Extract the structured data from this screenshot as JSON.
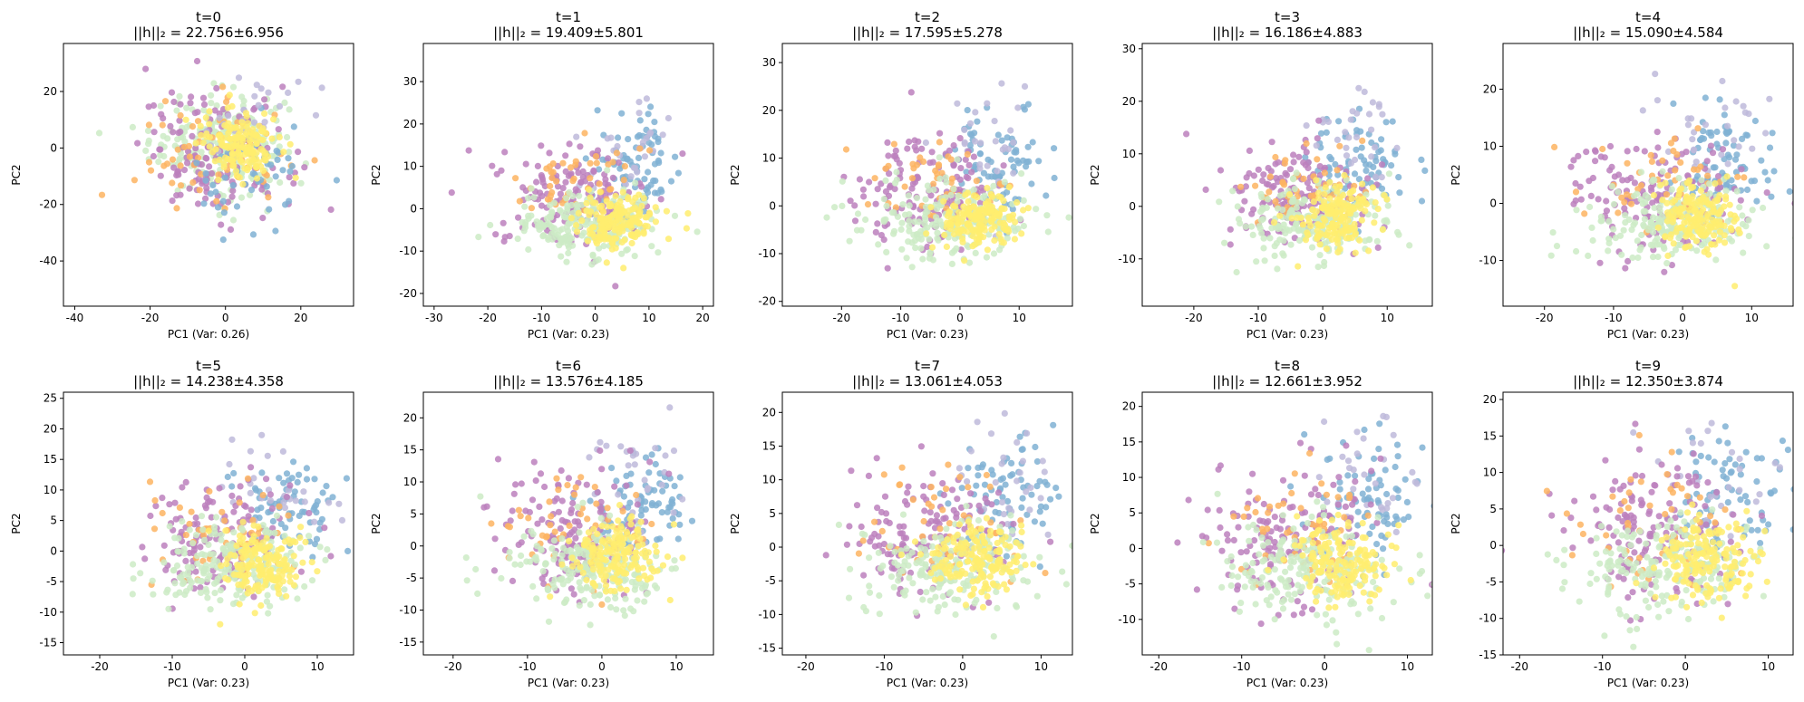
{
  "figure": {
    "palette": [
      "#8dd3c7",
      "#ffffb3",
      "#bebada",
      "#fb8072",
      "#80b1d3",
      "#fdb462",
      "#b3de69",
      "#fccde5",
      "#d9d9d9",
      "#bc80bd",
      "#ccebc5",
      "#ffed6f"
    ]
  },
  "chart_data": [
    {
      "type": "scatter",
      "title_line1": "t=0",
      "title_line2": "||h||₂ = 22.756±6.956",
      "xlabel": "PC1 (Var: 0.26)",
      "ylabel": "PC2",
      "xlim": [
        -43,
        34
      ],
      "ylim": [
        -56,
        37
      ],
      "xticks": [
        -40,
        -20,
        0,
        20
      ],
      "yticks": [
        -40,
        -20,
        0,
        20
      ],
      "clusters": [
        {
          "color": "#ccebc5",
          "cx": -2,
          "cy": 2,
          "sx": 9,
          "sy": 9,
          "n": 200
        },
        {
          "color": "#bc80bd",
          "cx": -2,
          "cy": -2,
          "sx": 10,
          "sy": 11,
          "n": 140
        },
        {
          "color": "#fdb462",
          "cx": -4,
          "cy": -4,
          "sx": 10,
          "sy": 10,
          "n": 60
        },
        {
          "color": "#80b1d3",
          "cx": 8,
          "cy": -10,
          "sx": 8,
          "sy": 10,
          "n": 50
        },
        {
          "color": "#bebada",
          "cx": 4,
          "cy": 10,
          "sx": 8,
          "sy": 10,
          "n": 30
        },
        {
          "color": "#ffed6f",
          "cx": 4,
          "cy": 2,
          "sx": 5,
          "sy": 6,
          "n": 150
        }
      ]
    },
    {
      "type": "scatter",
      "title_line1": "t=1",
      "title_line2": "||h||₂ = 19.409±5.801",
      "xlabel": "PC1 (Var: 0.23)",
      "ylabel": "PC2",
      "xlim": [
        -32,
        22
      ],
      "ylim": [
        -23,
        39
      ],
      "xticks": [
        -30,
        -20,
        -10,
        0,
        10,
        20
      ],
      "yticks": [
        -20,
        -10,
        0,
        10,
        20,
        30
      ],
      "clusters": [
        {
          "color": "#80b1d3",
          "cx": 8,
          "cy": 10,
          "sx": 4,
          "sy": 6,
          "n": 80
        },
        {
          "color": "#bebada",
          "cx": 6,
          "cy": 15,
          "sx": 4,
          "sy": 7,
          "n": 30
        },
        {
          "color": "#bc80bd",
          "cx": -5,
          "cy": 3,
          "sx": 7,
          "sy": 6,
          "n": 150
        },
        {
          "color": "#fdb462",
          "cx": -3,
          "cy": 6,
          "sx": 6,
          "sy": 5,
          "n": 50
        },
        {
          "color": "#ccebc5",
          "cx": -2,
          "cy": -4,
          "sx": 7,
          "sy": 4,
          "n": 200
        },
        {
          "color": "#ffed6f",
          "cx": 4,
          "cy": -3,
          "sx": 3.5,
          "sy": 3,
          "n": 160
        }
      ]
    },
    {
      "type": "scatter",
      "title_line1": "t=2",
      "title_line2": "||h||₂ = 17.595±5.278",
      "xlabel": "PC1 (Var: 0.23)",
      "ylabel": "PC2",
      "xlim": [
        -30,
        19
      ],
      "ylim": [
        -21,
        34
      ],
      "xticks": [
        -20,
        -10,
        0,
        10
      ],
      "yticks": [
        -20,
        -10,
        0,
        10,
        20,
        30
      ],
      "clusters": [
        {
          "color": "#80b1d3",
          "cx": 7,
          "cy": 9,
          "sx": 4,
          "sy": 6,
          "n": 80
        },
        {
          "color": "#bebada",
          "cx": 5,
          "cy": 13,
          "sx": 4,
          "sy": 6,
          "n": 30
        },
        {
          "color": "#bc80bd",
          "cx": -5,
          "cy": 3,
          "sx": 6,
          "sy": 6,
          "n": 150
        },
        {
          "color": "#fdb462",
          "cx": -3,
          "cy": 5,
          "sx": 6,
          "sy": 5,
          "n": 50
        },
        {
          "color": "#ccebc5",
          "cx": -2,
          "cy": -3,
          "sx": 7,
          "sy": 4,
          "n": 200
        },
        {
          "color": "#ffed6f",
          "cx": 3,
          "cy": -3,
          "sx": 3.5,
          "sy": 3,
          "n": 160
        }
      ]
    },
    {
      "type": "scatter",
      "title_line1": "t=3",
      "title_line2": "||h||₂ = 16.186±4.883",
      "xlabel": "PC1 (Var: 0.23)",
      "ylabel": "PC2",
      "xlim": [
        -28,
        17
      ],
      "ylim": [
        -19,
        31
      ],
      "xticks": [
        -20,
        -10,
        0,
        10
      ],
      "yticks": [
        -10,
        0,
        10,
        20,
        30
      ],
      "clusters": [
        {
          "color": "#80b1d3",
          "cx": 6,
          "cy": 8,
          "sx": 4,
          "sy": 5,
          "n": 80
        },
        {
          "color": "#bebada",
          "cx": 5,
          "cy": 12,
          "sx": 4,
          "sy": 6,
          "n": 30
        },
        {
          "color": "#bc80bd",
          "cx": -4,
          "cy": 3,
          "sx": 6,
          "sy": 5,
          "n": 150
        },
        {
          "color": "#fdb462",
          "cx": -3,
          "cy": 4,
          "sx": 5,
          "sy": 4,
          "n": 50
        },
        {
          "color": "#ccebc5",
          "cx": -2,
          "cy": -3,
          "sx": 6,
          "sy": 4,
          "n": 200
        },
        {
          "color": "#ffed6f",
          "cx": 2,
          "cy": -2,
          "sx": 3,
          "sy": 3,
          "n": 160
        }
      ]
    },
    {
      "type": "scatter",
      "title_line1": "t=4",
      "title_line2": "||h||₂ = 15.090±4.584",
      "xlabel": "PC1 (Var: 0.23)",
      "ylabel": "PC2",
      "xlim": [
        -26,
        16
      ],
      "ylim": [
        -18,
        28
      ],
      "xticks": [
        -20,
        -10,
        0,
        10
      ],
      "yticks": [
        -10,
        0,
        10,
        20
      ],
      "clusters": [
        {
          "color": "#80b1d3",
          "cx": 6,
          "cy": 8,
          "sx": 3.5,
          "sy": 5,
          "n": 80
        },
        {
          "color": "#bebada",
          "cx": 5,
          "cy": 11,
          "sx": 4,
          "sy": 5,
          "n": 30
        },
        {
          "color": "#bc80bd",
          "cx": -4,
          "cy": 2,
          "sx": 6,
          "sy": 5,
          "n": 150
        },
        {
          "color": "#fdb462",
          "cx": -3,
          "cy": 4,
          "sx": 5,
          "sy": 4,
          "n": 50
        },
        {
          "color": "#ccebc5",
          "cx": -2,
          "cy": -3,
          "sx": 6,
          "sy": 3.5,
          "n": 200
        },
        {
          "color": "#ffed6f",
          "cx": 2,
          "cy": -2,
          "sx": 3,
          "sy": 3,
          "n": 160
        }
      ]
    },
    {
      "type": "scatter",
      "title_line1": "t=5",
      "title_line2": "||h||₂ = 14.238±4.358",
      "xlabel": "PC1 (Var: 0.23)",
      "ylabel": "PC2",
      "xlim": [
        -25,
        15
      ],
      "ylim": [
        -17,
        26
      ],
      "xticks": [
        -20,
        -10,
        0,
        10
      ],
      "yticks": [
        -15,
        -10,
        -5,
        0,
        5,
        10,
        15,
        20,
        25
      ],
      "clusters": [
        {
          "color": "#80b1d3",
          "cx": 6,
          "cy": 7,
          "sx": 3.5,
          "sy": 4.5,
          "n": 80
        },
        {
          "color": "#bebada",
          "cx": 5,
          "cy": 10,
          "sx": 4,
          "sy": 5,
          "n": 30
        },
        {
          "color": "#bc80bd",
          "cx": -4,
          "cy": 2,
          "sx": 5,
          "sy": 5,
          "n": 150
        },
        {
          "color": "#fdb462",
          "cx": -3,
          "cy": 3,
          "sx": 5,
          "sy": 4,
          "n": 50
        },
        {
          "color": "#ccebc5",
          "cx": -2,
          "cy": -3,
          "sx": 5.5,
          "sy": 3.5,
          "n": 200
        },
        {
          "color": "#ffed6f",
          "cx": 2,
          "cy": -2,
          "sx": 3,
          "sy": 2.8,
          "n": 160
        }
      ]
    },
    {
      "type": "scatter",
      "title_line1": "t=6",
      "title_line2": "||h||₂ = 13.576±4.185",
      "xlabel": "PC1 (Var: 0.23)",
      "ylabel": "PC2",
      "xlim": [
        -24,
        15
      ],
      "ylim": [
        -17,
        24
      ],
      "xticks": [
        -20,
        -10,
        0,
        10
      ],
      "yticks": [
        -15,
        -10,
        -5,
        0,
        5,
        10,
        15,
        20
      ],
      "clusters": [
        {
          "color": "#80b1d3",
          "cx": 6,
          "cy": 7,
          "sx": 3.5,
          "sy": 4.5,
          "n": 80
        },
        {
          "color": "#bebada",
          "cx": 5,
          "cy": 10,
          "sx": 4,
          "sy": 5,
          "n": 30
        },
        {
          "color": "#bc80bd",
          "cx": -4,
          "cy": 2,
          "sx": 5,
          "sy": 5,
          "n": 150
        },
        {
          "color": "#fdb462",
          "cx": -3,
          "cy": 3,
          "sx": 5,
          "sy": 4,
          "n": 50
        },
        {
          "color": "#ccebc5",
          "cx": -2,
          "cy": -3,
          "sx": 5.5,
          "sy": 3.5,
          "n": 200
        },
        {
          "color": "#ffed6f",
          "cx": 2,
          "cy": -2,
          "sx": 3,
          "sy": 2.8,
          "n": 160
        }
      ]
    },
    {
      "type": "scatter",
      "title_line1": "t=7",
      "title_line2": "||h||₂ = 13.061±4.053",
      "xlabel": "PC1 (Var: 0.23)",
      "ylabel": "PC2",
      "xlim": [
        -23,
        14
      ],
      "ylim": [
        -16,
        23
      ],
      "xticks": [
        -20,
        -10,
        0,
        10
      ],
      "yticks": [
        -15,
        -10,
        -5,
        0,
        5,
        10,
        15,
        20
      ],
      "clusters": [
        {
          "color": "#80b1d3",
          "cx": 6,
          "cy": 7,
          "sx": 3.5,
          "sy": 4.5,
          "n": 80
        },
        {
          "color": "#bebada",
          "cx": 5,
          "cy": 10,
          "sx": 4,
          "sy": 5,
          "n": 30
        },
        {
          "color": "#bc80bd",
          "cx": -4,
          "cy": 2,
          "sx": 5,
          "sy": 5,
          "n": 150
        },
        {
          "color": "#fdb462",
          "cx": -3,
          "cy": 3,
          "sx": 5,
          "sy": 4,
          "n": 50
        },
        {
          "color": "#ccebc5",
          "cx": -2,
          "cy": -3,
          "sx": 5.5,
          "sy": 3.5,
          "n": 200
        },
        {
          "color": "#ffed6f",
          "cx": 2,
          "cy": -2,
          "sx": 3,
          "sy": 2.8,
          "n": 160
        }
      ]
    },
    {
      "type": "scatter",
      "title_line1": "t=8",
      "title_line2": "||h||₂ = 12.661±3.952",
      "xlabel": "PC1 (Var: 0.23)",
      "ylabel": "PC2",
      "xlim": [
        -22,
        13
      ],
      "ylim": [
        -15,
        22
      ],
      "xticks": [
        -20,
        -10,
        0,
        10
      ],
      "yticks": [
        -10,
        -5,
        0,
        5,
        10,
        15,
        20
      ],
      "clusters": [
        {
          "color": "#80b1d3",
          "cx": 6,
          "cy": 7,
          "sx": 3.5,
          "sy": 4.5,
          "n": 80
        },
        {
          "color": "#bebada",
          "cx": 5,
          "cy": 10,
          "sx": 4,
          "sy": 5,
          "n": 30
        },
        {
          "color": "#bc80bd",
          "cx": -4,
          "cy": 2,
          "sx": 5,
          "sy": 5,
          "n": 150
        },
        {
          "color": "#fdb462",
          "cx": -3,
          "cy": 3,
          "sx": 5,
          "sy": 4,
          "n": 50
        },
        {
          "color": "#ccebc5",
          "cx": -2,
          "cy": -3,
          "sx": 5.5,
          "sy": 3.5,
          "n": 200
        },
        {
          "color": "#ffed6f",
          "cx": 2,
          "cy": -2,
          "sx": 3,
          "sy": 2.8,
          "n": 160
        }
      ]
    },
    {
      "type": "scatter",
      "title_line1": "t=9",
      "title_line2": "||h||₂ = 12.350±3.874",
      "xlabel": "PC1 (Var: 0.23)",
      "ylabel": "PC2",
      "xlim": [
        -22,
        13
      ],
      "ylim": [
        -15,
        21
      ],
      "xticks": [
        -20,
        -10,
        0,
        10
      ],
      "yticks": [
        -15,
        -10,
        -5,
        0,
        5,
        10,
        15,
        20
      ],
      "clusters": [
        {
          "color": "#80b1d3",
          "cx": 6,
          "cy": 7,
          "sx": 3.5,
          "sy": 4.5,
          "n": 80
        },
        {
          "color": "#bebada",
          "cx": 5,
          "cy": 10,
          "sx": 4,
          "sy": 5,
          "n": 30
        },
        {
          "color": "#bc80bd",
          "cx": -4,
          "cy": 2,
          "sx": 5,
          "sy": 5,
          "n": 150
        },
        {
          "color": "#fdb462",
          "cx": -3,
          "cy": 3,
          "sx": 5,
          "sy": 4,
          "n": 50
        },
        {
          "color": "#ccebc5",
          "cx": -2,
          "cy": -3,
          "sx": 5.5,
          "sy": 3.5,
          "n": 200
        },
        {
          "color": "#ffed6f",
          "cx": 2,
          "cy": -2,
          "sx": 3,
          "sy": 2.8,
          "n": 160
        }
      ]
    }
  ]
}
